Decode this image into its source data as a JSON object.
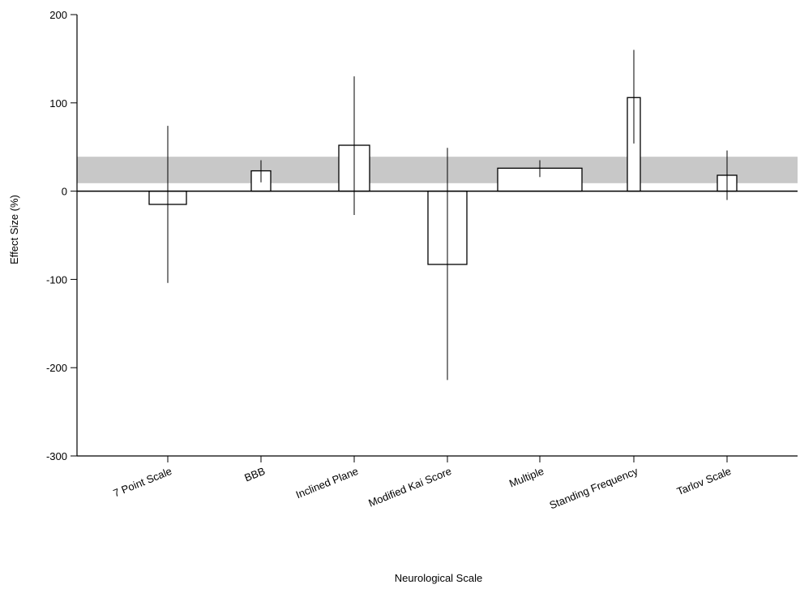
{
  "chart_data": {
    "type": "bar",
    "title": "",
    "xlabel": "Neurological Scale",
    "ylabel": "Effect Size (%)",
    "ylim": [
      -300,
      200
    ],
    "yticks": [
      -300,
      -200,
      -100,
      0,
      100,
      200
    ],
    "grid": false,
    "legend": "none",
    "categories": [
      "7 Point Scale",
      "BBB",
      "Inclined Plane",
      "Modified Kai Score",
      "Multiple",
      "Standing Frequency",
      "Tarlov Scale"
    ],
    "values": [
      -15,
      23,
      52,
      -83,
      26,
      106,
      18
    ],
    "error_low": [
      -104,
      10,
      -27,
      -214,
      16,
      54,
      -10
    ],
    "error_high": [
      74,
      35,
      130,
      49,
      35,
      160,
      46
    ],
    "reference_band": {
      "from": 9,
      "to": 39,
      "color": "#c8c8c8"
    },
    "colors": {
      "bar_fill": "#ffffff",
      "bar_stroke": "#000000",
      "error_bar": "#000000",
      "axis": "#000000"
    }
  }
}
